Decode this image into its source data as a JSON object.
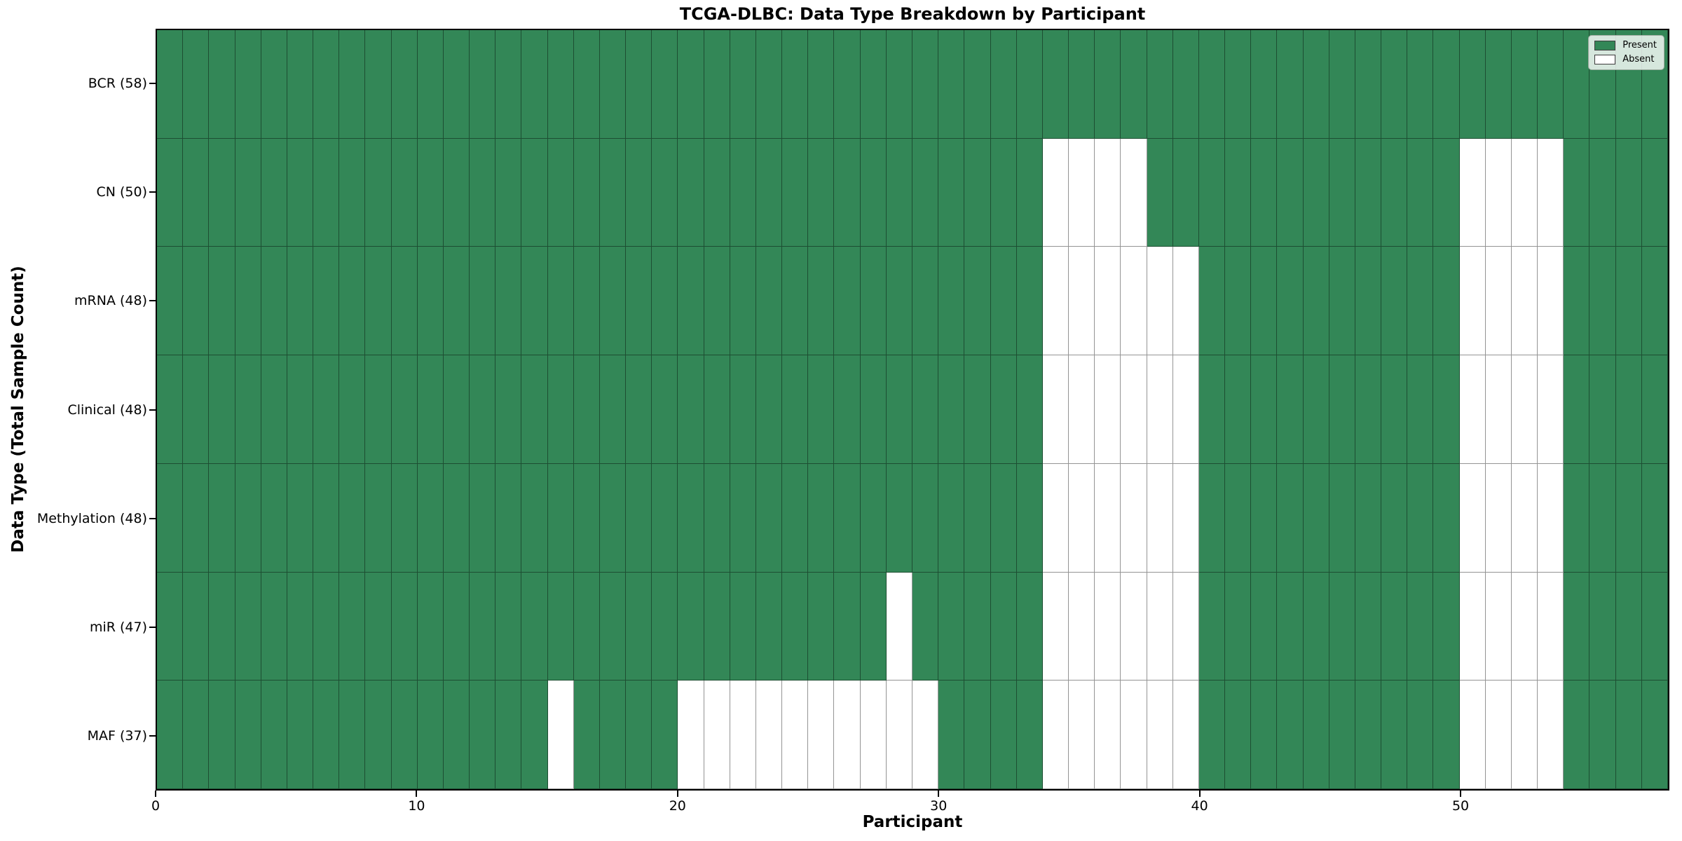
{
  "title": "TCGA-DLBC: Data Type Breakdown by Participant",
  "xlabel": "Participant",
  "ylabel": "Data Type (Total Sample Count)",
  "legend": {
    "present_label": "Present",
    "absent_label": "Absent"
  },
  "colors": {
    "present": "#338757",
    "absent": "#ffffff",
    "grid_line": "rgba(0,0,0,0.42)",
    "axis_frame": "#000000",
    "legend_background": "rgba(255,255,255,0.8)"
  },
  "chart_data": {
    "type": "heatmap",
    "title": "TCGA-DLBC: Data Type Breakdown by Participant",
    "xlabel": "Participant",
    "ylabel": "Data Type (Total Sample Count)",
    "x_range": [
      0,
      58
    ],
    "x_ticks": [
      0,
      10,
      20,
      30,
      40,
      50
    ],
    "n_participants": 58,
    "legend_entries": [
      "Present",
      "Absent"
    ],
    "cell_states": [
      "present",
      "absent"
    ],
    "rows": [
      {
        "label": "BCR (58)",
        "data_type": "BCR",
        "present_count": 58,
        "absent_participants": []
      },
      {
        "label": "CN (50)",
        "data_type": "CN",
        "present_count": 50,
        "absent_participants": [
          34,
          35,
          36,
          37,
          50,
          51,
          52,
          53
        ]
      },
      {
        "label": "mRNA (48)",
        "data_type": "mRNA",
        "present_count": 48,
        "absent_participants": [
          34,
          35,
          36,
          37,
          38,
          39,
          50,
          51,
          52,
          53
        ]
      },
      {
        "label": "Clinical (48)",
        "data_type": "Clinical",
        "present_count": 48,
        "absent_participants": [
          34,
          35,
          36,
          37,
          38,
          39,
          50,
          51,
          52,
          53
        ]
      },
      {
        "label": "Methylation (48)",
        "data_type": "Methylation",
        "present_count": 48,
        "absent_participants": [
          34,
          35,
          36,
          37,
          38,
          39,
          50,
          51,
          52,
          53
        ]
      },
      {
        "label": "miR (47)",
        "data_type": "miR",
        "present_count": 47,
        "absent_participants": [
          28,
          34,
          35,
          36,
          37,
          38,
          39,
          50,
          51,
          52,
          53
        ]
      },
      {
        "label": "MAF (37)",
        "data_type": "MAF",
        "present_count": 37,
        "absent_participants": [
          15,
          20,
          21,
          22,
          23,
          24,
          25,
          26,
          27,
          28,
          29,
          34,
          35,
          36,
          37,
          38,
          39,
          50,
          51,
          52,
          53
        ]
      }
    ]
  }
}
